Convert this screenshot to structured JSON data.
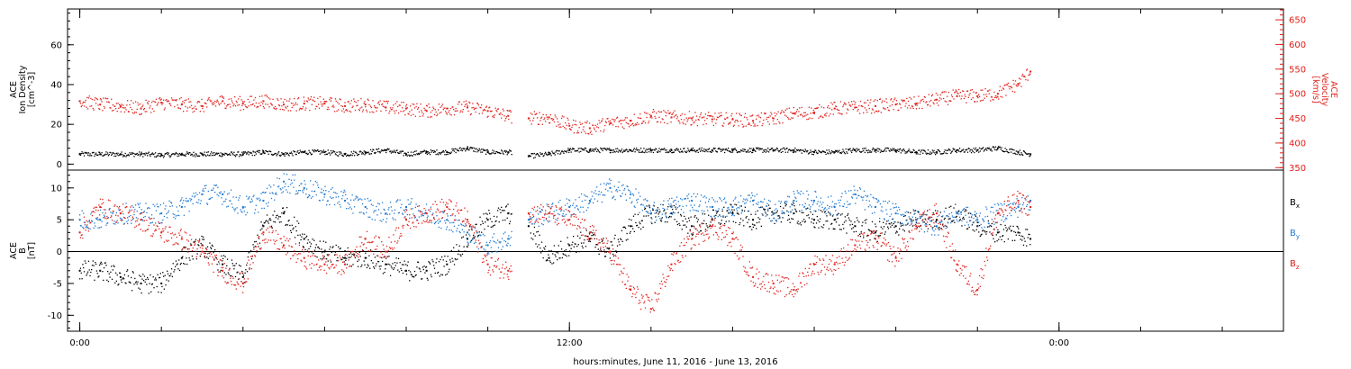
{
  "figure": {
    "xlabel": "hours:minutes, June 11, 2016 - June 13, 2016",
    "x_ticks": [
      {
        "t": 0,
        "label": "0:00"
      },
      {
        "t": 12,
        "label": "12:00"
      },
      {
        "t": 24,
        "label": "0:00"
      }
    ],
    "xlim": [
      -0.3,
      29.5
    ]
  },
  "chart_data": [
    {
      "type": "scatter",
      "name": "top-panel",
      "left_axis": {
        "label_lines": [
          "ACE",
          "Ion Density",
          "[cm^-3]"
        ],
        "ylim": [
          -3,
          78
        ],
        "ticks": [
          0,
          20,
          40,
          60
        ],
        "color": "#000000"
      },
      "right_axis": {
        "label_lines": [
          "ACE",
          "Velocity",
          "[km/s]"
        ],
        "ylim": [
          345,
          672
        ],
        "ticks": [
          350,
          400,
          450,
          500,
          550,
          600,
          650
        ],
        "color": "#e0201b"
      },
      "series": [
        {
          "axis": "left",
          "color": "#000000",
          "x": [
            0,
            0.5,
            1,
            1.5,
            2,
            2.5,
            3,
            3.5,
            4,
            4.5,
            5,
            5.5,
            6,
            6.5,
            7,
            7.5,
            8,
            8.5,
            9,
            9.5,
            10,
            10.5,
            11,
            11.5,
            12,
            12.5,
            13,
            13.5,
            14,
            14.5,
            15,
            15.5,
            16,
            16.5,
            17,
            17.5,
            18,
            18.5,
            19,
            19.5,
            20,
            20.5,
            21,
            21.5,
            22,
            22.5,
            23,
            23.3
          ],
          "y": [
            5,
            5,
            5,
            5,
            4.5,
            5,
            5,
            5,
            5,
            6,
            5,
            6,
            6,
            5,
            6,
            7,
            5,
            6,
            6,
            8,
            6,
            6,
            4,
            5,
            7,
            7,
            7,
            7,
            7,
            7,
            7,
            7,
            7,
            7,
            7,
            7,
            6,
            6,
            7,
            7,
            7,
            6,
            6,
            7,
            7,
            8,
            6,
            5
          ]
        },
        {
          "axis": "right",
          "color": "#e0201b",
          "x": [
            0,
            0.5,
            1,
            1.5,
            2,
            2.5,
            3,
            3.5,
            4,
            4.5,
            5,
            5.5,
            6,
            6.5,
            7,
            7.5,
            8,
            8.5,
            9,
            9.5,
            10,
            10.5,
            11,
            11.5,
            12,
            12.5,
            13,
            13.5,
            14,
            14.5,
            15,
            15.5,
            16,
            16.5,
            17,
            17.5,
            18,
            18.5,
            19,
            19.5,
            20,
            20.5,
            21,
            21.5,
            22,
            22.5,
            23,
            23.3
          ],
          "y": [
            485,
            478,
            475,
            470,
            482,
            478,
            475,
            485,
            480,
            485,
            478,
            480,
            480,
            475,
            478,
            472,
            470,
            465,
            470,
            472,
            465,
            455,
            450,
            452,
            435,
            430,
            440,
            445,
            455,
            452,
            450,
            448,
            448,
            445,
            450,
            460,
            462,
            470,
            472,
            475,
            478,
            480,
            488,
            495,
            495,
            500,
            520,
            545
          ]
        }
      ]
    },
    {
      "type": "scatter",
      "name": "bottom-panel",
      "left_axis": {
        "label_lines": [
          "ACE",
          "B",
          "[nT]"
        ],
        "ylim": [
          -12.5,
          12.8
        ],
        "ticks": [
          -10,
          -5,
          0,
          5,
          10
        ]
      },
      "zero_line": true,
      "legend": [
        "Bx",
        "By",
        "Bz"
      ],
      "series": [
        {
          "name": "Bx",
          "color": "#000000",
          "x": [
            0,
            0.5,
            1,
            1.5,
            2,
            2.5,
            3,
            3.5,
            4,
            4.5,
            5,
            5.5,
            6,
            6.5,
            7,
            7.5,
            8,
            8.5,
            9,
            9.5,
            10,
            10.5,
            11,
            11.5,
            12,
            12.5,
            13,
            13.5,
            14,
            14.5,
            15,
            15.5,
            16,
            16.5,
            17,
            17.5,
            18,
            18.5,
            19,
            19.5,
            20,
            20.5,
            21,
            21.5,
            22,
            22.5,
            23,
            23.3
          ],
          "y": [
            -3,
            -3,
            -4,
            -5,
            -5,
            -1,
            1,
            -2,
            -4,
            4,
            6,
            2,
            0,
            -1,
            -1,
            -2,
            -3,
            -3,
            -2,
            2,
            5,
            6,
            4,
            -1,
            1,
            2,
            0,
            4,
            6,
            6,
            4,
            5,
            6,
            5,
            6,
            6,
            5,
            5,
            4,
            3,
            4,
            5,
            5,
            6,
            4,
            3,
            3,
            2
          ]
        },
        {
          "name": "By",
          "color": "#1f78d1",
          "x": [
            0,
            0.5,
            1,
            1.5,
            2,
            2.5,
            3,
            3.5,
            4,
            4.5,
            5,
            5.5,
            6,
            6.5,
            7,
            7.5,
            8,
            8.5,
            9,
            9.5,
            10,
            10.5,
            11,
            11.5,
            12,
            12.5,
            13,
            13.5,
            14,
            14.5,
            15,
            15.5,
            16,
            16.5,
            17,
            17.5,
            18,
            18.5,
            19,
            19.5,
            20,
            20.5,
            21,
            21.5,
            22,
            22.5,
            23,
            23.3
          ],
          "y": [
            5,
            5,
            6,
            6,
            6,
            7,
            9,
            9,
            7,
            8,
            11,
            10,
            9,
            8,
            7,
            6,
            7,
            6,
            5,
            3,
            1,
            2,
            5,
            6,
            7,
            8,
            10,
            9,
            6,
            7,
            8,
            7,
            7,
            8,
            6,
            8,
            8,
            7,
            9,
            7,
            6,
            5,
            4,
            6,
            5,
            6,
            7,
            8
          ]
        },
        {
          "name": "Bz",
          "color": "#e0201b",
          "x": [
            0,
            0.5,
            1,
            1.5,
            2,
            2.5,
            3,
            3.5,
            4,
            4.5,
            5,
            5.5,
            6,
            6.5,
            7,
            7.5,
            8,
            8.5,
            9,
            9.5,
            10,
            10.5,
            11,
            11.5,
            12,
            12.5,
            13,
            13.5,
            14,
            14.5,
            15,
            15.5,
            16,
            16.5,
            17,
            17.5,
            18,
            18.5,
            19,
            19.5,
            20,
            20.5,
            21,
            21.5,
            22,
            22.5,
            23,
            23.3
          ],
          "y": [
            3,
            7,
            6,
            5,
            3,
            2,
            0,
            -3,
            -5,
            3,
            1,
            -1,
            -2,
            -2,
            2,
            0,
            5,
            6,
            7,
            5,
            -2,
            -3,
            6,
            6,
            5,
            3,
            0,
            -6,
            -9,
            -2,
            2,
            4,
            2,
            -4,
            -5,
            -6,
            -2,
            -2,
            1,
            2,
            -1,
            4,
            6,
            -2,
            -6,
            6,
            8,
            7
          ]
        }
      ]
    }
  ]
}
